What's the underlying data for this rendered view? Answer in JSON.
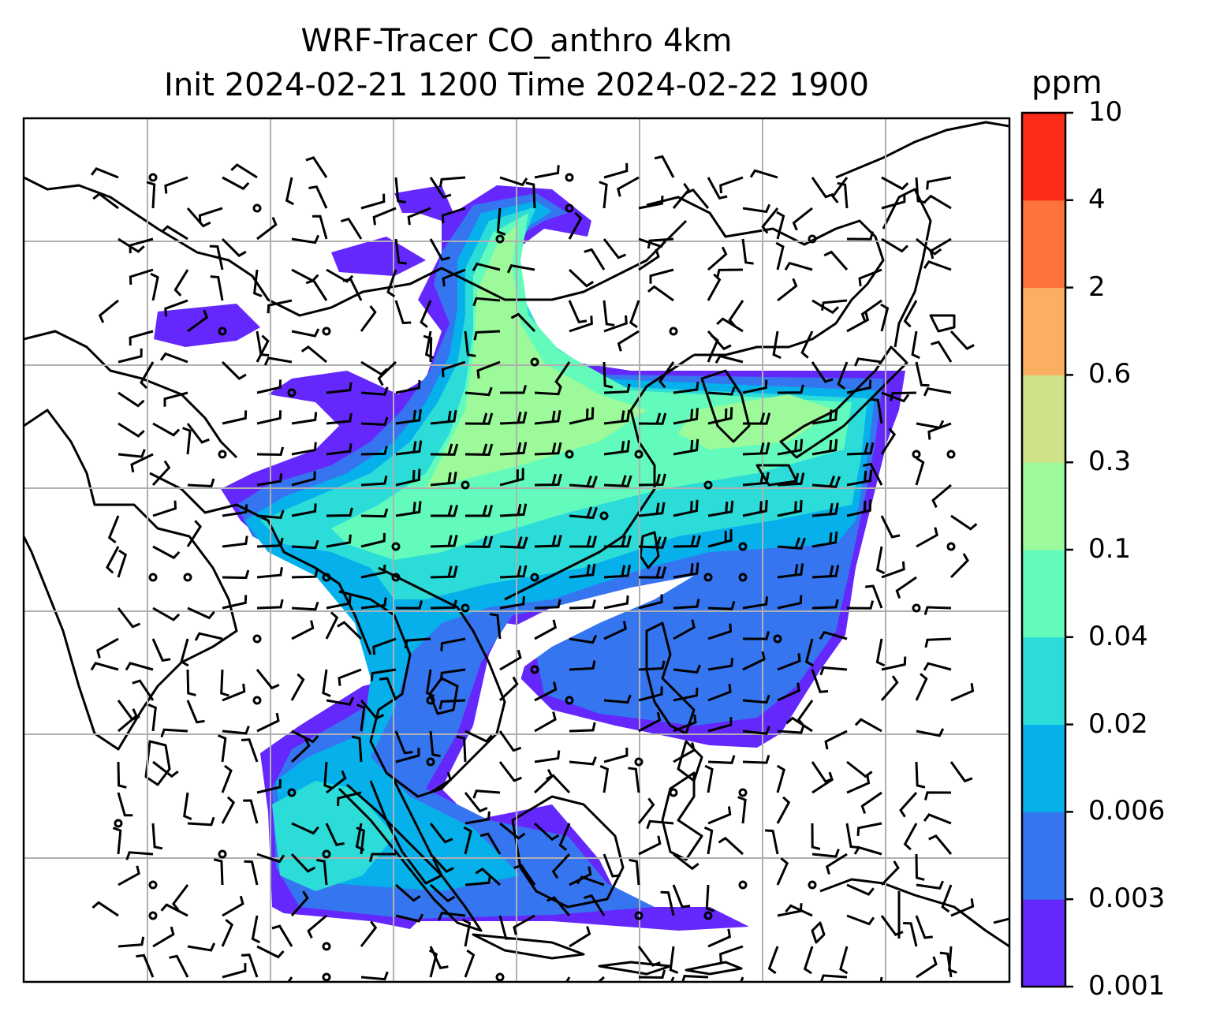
{
  "title_line1": "WRF-Tracer CO_anthro 4km",
  "title_line2": "Init 2024-02-21 1200 Time 2024-02-22 1900",
  "colorbar": {
    "unit": "ppm",
    "tick_labels": [
      "0.001",
      "0.003",
      "0.006",
      "0.02",
      "0.04",
      "0.1",
      "0.3",
      "0.6",
      "2",
      "4",
      "10"
    ],
    "colors": [
      "#6528fc",
      "#3575f0",
      "#06b0ea",
      "#2bdcd8",
      "#63fbbc",
      "#9cfa9b",
      "#cfe288",
      "#fbaf61",
      "#fd733a",
      "#fd2b1a"
    ]
  },
  "map": {
    "type": "filled contour map with wind barbs",
    "field": "CO_anthro",
    "region": "South and Southeast Asia, East Asia, Western Pacific",
    "gridlines": true
  }
}
